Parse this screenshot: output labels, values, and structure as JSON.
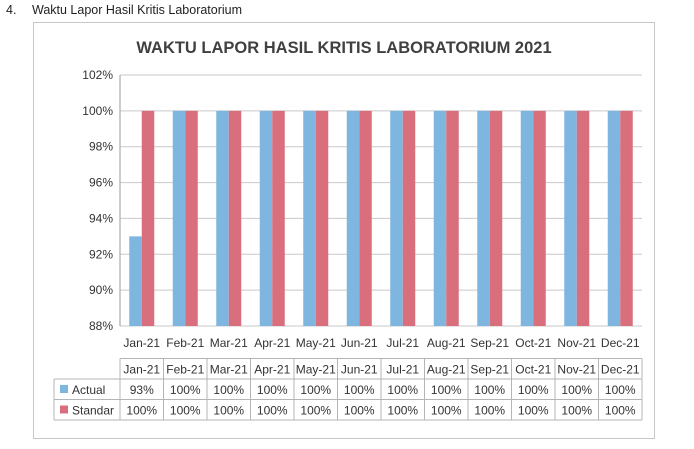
{
  "heading": {
    "number": "4.",
    "text": "Waktu Lapor Hasil Kritis Laboratorium"
  },
  "chart_data": {
    "type": "bar",
    "title": "WAKTU LAPOR HASIL KRITIS LABORATORIUM 2021",
    "categories": [
      "Jan-21",
      "Feb-21",
      "Mar-21",
      "Apr-21",
      "May-21",
      "Jun-21",
      "Jul-21",
      "Aug-21",
      "Sep-21",
      "Oct-21",
      "Nov-21",
      "Dec-21"
    ],
    "ylim": [
      0.88,
      1.02
    ],
    "yticks": [
      {
        "value": 0.88,
        "label": "88%"
      },
      {
        "value": 0.9,
        "label": "90%"
      },
      {
        "value": 0.92,
        "label": "92%"
      },
      {
        "value": 0.94,
        "label": "94%"
      },
      {
        "value": 0.96,
        "label": "96%"
      },
      {
        "value": 0.98,
        "label": "98%"
      },
      {
        "value": 1.0,
        "label": "100%"
      },
      {
        "value": 1.02,
        "label": "102%"
      }
    ],
    "grid": true,
    "legend": "data-table",
    "series": [
      {
        "name": "Actual",
        "color": "#7fb6e0",
        "values": [
          0.93,
          1,
          1,
          1,
          1,
          1,
          1,
          1,
          1,
          1,
          1,
          1
        ],
        "labels": [
          "93%",
          "100%",
          "100%",
          "100%",
          "100%",
          "100%",
          "100%",
          "100%",
          "100%",
          "100%",
          "100%",
          "100%"
        ]
      },
      {
        "name": "Standar",
        "color": "#d96f7c",
        "values": [
          1,
          1,
          1,
          1,
          1,
          1,
          1,
          1,
          1,
          1,
          1,
          1
        ],
        "labels": [
          "100%",
          "100%",
          "100%",
          "100%",
          "100%",
          "100%",
          "100%",
          "100%",
          "100%",
          "100%",
          "100%",
          "100%"
        ]
      }
    ]
  }
}
